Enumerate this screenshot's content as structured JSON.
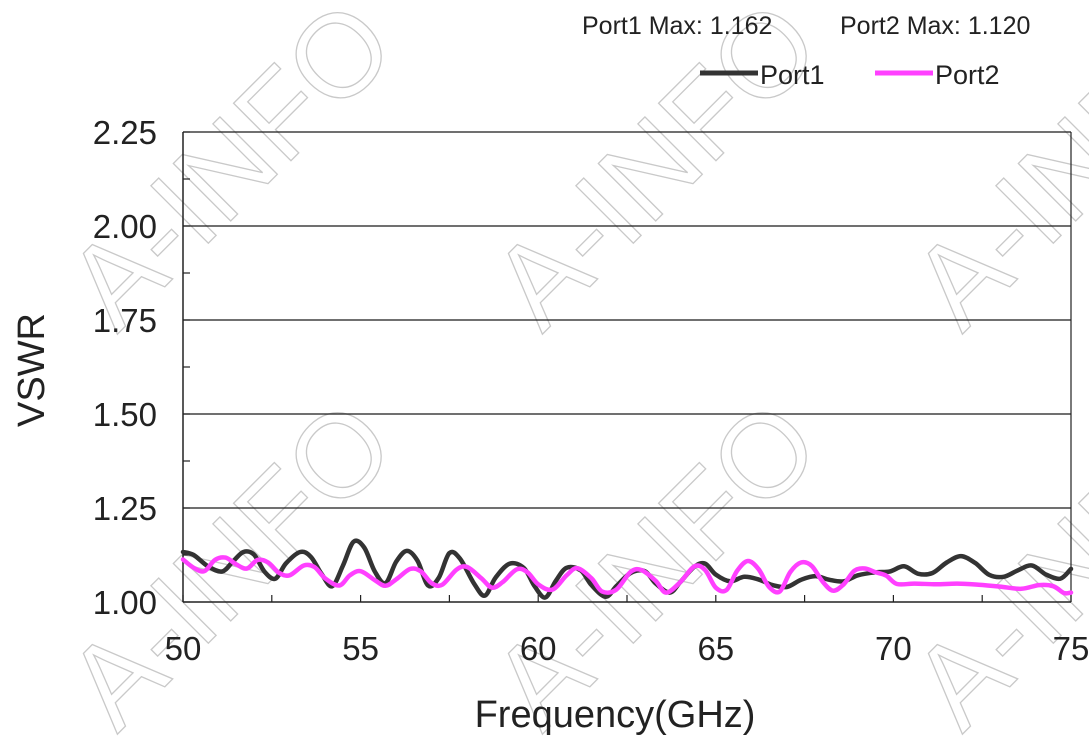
{
  "watermark": {
    "text": "A-INFO",
    "color": "#c9c9c9"
  },
  "colors": {
    "port1": "#333333",
    "port2": "#ff40ff",
    "grid": "#1a1a1a",
    "axis": "#222222"
  },
  "stats": {
    "port1_max": "Port1 Max: 1.162",
    "port2_max": "Port2 Max: 1.120"
  },
  "chart_data": {
    "type": "line",
    "title": "",
    "xlabel": "Frequency(GHz)",
    "ylabel": "VSWR",
    "xlim": [
      50,
      75
    ],
    "ylim": [
      1.0,
      2.25
    ],
    "x_ticks": [
      "50",
      "55",
      "60",
      "65",
      "70",
      "75"
    ],
    "y_ticks": [
      "1.00",
      "1.25",
      "1.50",
      "1.75",
      "2.00",
      "2.25"
    ],
    "grid": "horizontal",
    "legend": "top-right",
    "series": [
      {
        "name": "Port1",
        "color": "#333333",
        "points": [
          [
            50.0,
            1.133
          ],
          [
            50.3,
            1.125
          ],
          [
            50.7,
            1.095
          ],
          [
            51.1,
            1.081
          ],
          [
            51.4,
            1.107
          ],
          [
            51.7,
            1.133
          ],
          [
            52.0,
            1.126
          ],
          [
            52.3,
            1.08
          ],
          [
            52.6,
            1.062
          ],
          [
            52.9,
            1.103
          ],
          [
            53.3,
            1.133
          ],
          [
            53.6,
            1.12
          ],
          [
            53.9,
            1.075
          ],
          [
            54.2,
            1.042
          ],
          [
            54.5,
            1.096
          ],
          [
            54.8,
            1.16
          ],
          [
            55.1,
            1.145
          ],
          [
            55.4,
            1.081
          ],
          [
            55.7,
            1.05
          ],
          [
            56.0,
            1.107
          ],
          [
            56.3,
            1.136
          ],
          [
            56.6,
            1.11
          ],
          [
            56.9,
            1.044
          ],
          [
            57.2,
            1.064
          ],
          [
            57.5,
            1.13
          ],
          [
            57.8,
            1.115
          ],
          [
            58.2,
            1.048
          ],
          [
            58.5,
            1.017
          ],
          [
            58.8,
            1.065
          ],
          [
            59.2,
            1.102
          ],
          [
            59.6,
            1.09
          ],
          [
            59.9,
            1.042
          ],
          [
            60.2,
            1.012
          ],
          [
            60.5,
            1.057
          ],
          [
            60.8,
            1.091
          ],
          [
            61.2,
            1.084
          ],
          [
            61.5,
            1.045
          ],
          [
            61.9,
            1.014
          ],
          [
            62.2,
            1.042
          ],
          [
            62.6,
            1.077
          ],
          [
            63.0,
            1.082
          ],
          [
            63.3,
            1.05
          ],
          [
            63.7,
            1.025
          ],
          [
            64.0,
            1.053
          ],
          [
            64.4,
            1.094
          ],
          [
            64.7,
            1.102
          ],
          [
            65.0,
            1.073
          ],
          [
            65.4,
            1.055
          ],
          [
            65.8,
            1.067
          ],
          [
            66.2,
            1.06
          ],
          [
            66.6,
            1.045
          ],
          [
            67.0,
            1.04
          ],
          [
            67.4,
            1.059
          ],
          [
            67.8,
            1.069
          ],
          [
            68.2,
            1.059
          ],
          [
            68.6,
            1.055
          ],
          [
            69.0,
            1.071
          ],
          [
            69.5,
            1.079
          ],
          [
            69.9,
            1.081
          ],
          [
            70.3,
            1.095
          ],
          [
            70.7,
            1.075
          ],
          [
            71.1,
            1.077
          ],
          [
            71.5,
            1.105
          ],
          [
            71.9,
            1.122
          ],
          [
            72.3,
            1.104
          ],
          [
            72.7,
            1.072
          ],
          [
            73.1,
            1.067
          ],
          [
            73.5,
            1.084
          ],
          [
            73.9,
            1.097
          ],
          [
            74.3,
            1.073
          ],
          [
            74.7,
            1.062
          ],
          [
            75.0,
            1.088
          ]
        ]
      },
      {
        "name": "Port2",
        "color": "#ff40ff",
        "points": [
          [
            50.0,
            1.113
          ],
          [
            50.3,
            1.091
          ],
          [
            50.6,
            1.082
          ],
          [
            50.9,
            1.112
          ],
          [
            51.2,
            1.118
          ],
          [
            51.5,
            1.1
          ],
          [
            51.8,
            1.089
          ],
          [
            52.1,
            1.112
          ],
          [
            52.4,
            1.105
          ],
          [
            52.7,
            1.078
          ],
          [
            53.0,
            1.071
          ],
          [
            53.4,
            1.097
          ],
          [
            53.7,
            1.093
          ],
          [
            54.0,
            1.063
          ],
          [
            54.4,
            1.044
          ],
          [
            54.7,
            1.071
          ],
          [
            55.0,
            1.082
          ],
          [
            55.4,
            1.058
          ],
          [
            55.7,
            1.043
          ],
          [
            56.0,
            1.06
          ],
          [
            56.4,
            1.088
          ],
          [
            56.7,
            1.081
          ],
          [
            57.0,
            1.05
          ],
          [
            57.3,
            1.046
          ],
          [
            57.7,
            1.086
          ],
          [
            58.0,
            1.093
          ],
          [
            58.4,
            1.063
          ],
          [
            58.7,
            1.038
          ],
          [
            59.0,
            1.053
          ],
          [
            59.4,
            1.087
          ],
          [
            59.7,
            1.079
          ],
          [
            60.0,
            1.047
          ],
          [
            60.4,
            1.033
          ],
          [
            60.8,
            1.071
          ],
          [
            61.1,
            1.09
          ],
          [
            61.5,
            1.063
          ],
          [
            61.8,
            1.028
          ],
          [
            62.2,
            1.033
          ],
          [
            62.6,
            1.08
          ],
          [
            62.9,
            1.085
          ],
          [
            63.3,
            1.057
          ],
          [
            63.6,
            1.025
          ],
          [
            64.0,
            1.053
          ],
          [
            64.4,
            1.095
          ],
          [
            64.7,
            1.085
          ],
          [
            65.0,
            1.038
          ],
          [
            65.3,
            1.032
          ],
          [
            65.6,
            1.083
          ],
          [
            65.9,
            1.109
          ],
          [
            66.2,
            1.088
          ],
          [
            66.5,
            1.04
          ],
          [
            66.8,
            1.028
          ],
          [
            67.1,
            1.08
          ],
          [
            67.4,
            1.105
          ],
          [
            67.7,
            1.096
          ],
          [
            68.0,
            1.055
          ],
          [
            68.3,
            1.03
          ],
          [
            68.6,
            1.047
          ],
          [
            68.9,
            1.083
          ],
          [
            69.2,
            1.089
          ],
          [
            69.5,
            1.079
          ],
          [
            69.8,
            1.07
          ],
          [
            70.1,
            1.048
          ],
          [
            70.6,
            1.049
          ],
          [
            71.2,
            1.047
          ],
          [
            71.8,
            1.049
          ],
          [
            72.4,
            1.046
          ],
          [
            73.0,
            1.041
          ],
          [
            73.6,
            1.035
          ],
          [
            74.1,
            1.045
          ],
          [
            74.5,
            1.042
          ],
          [
            74.8,
            1.024
          ],
          [
            75.0,
            1.025
          ]
        ]
      }
    ]
  }
}
